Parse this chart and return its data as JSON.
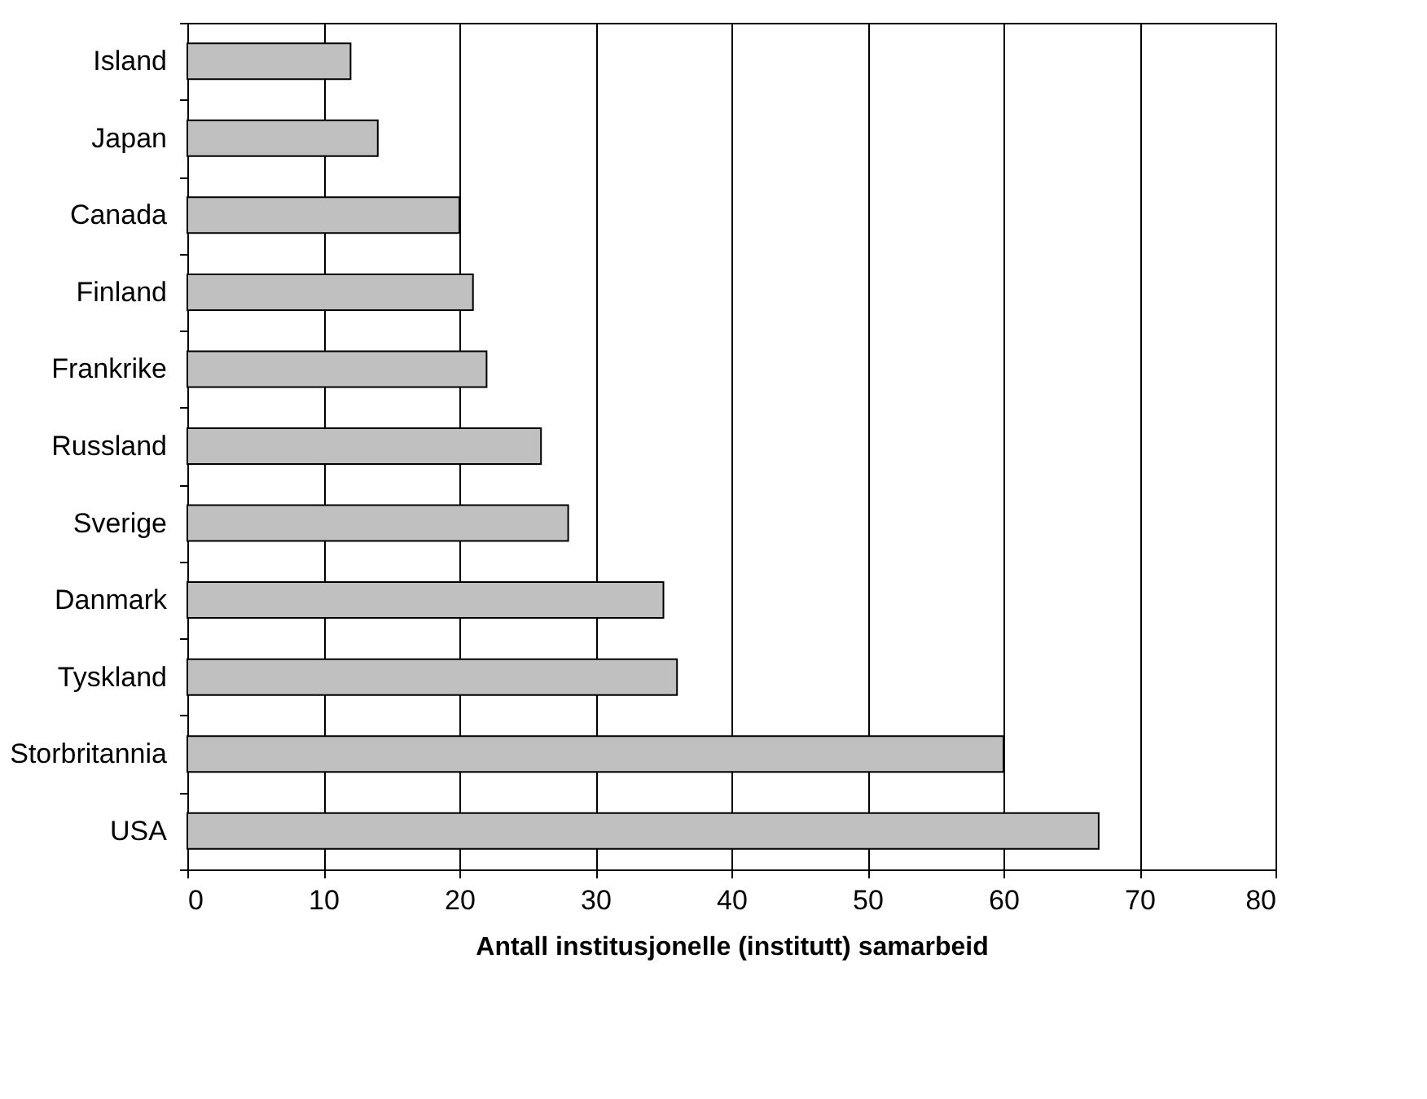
{
  "chart_data": {
    "type": "bar",
    "orientation": "horizontal",
    "xlabel": "Antall institusjonelle (institutt) samarbeid",
    "categories": [
      "Island",
      "Japan",
      "Canada",
      "Finland",
      "Frankrike",
      "Russland",
      "Sverige",
      "Danmark",
      "Tyskland",
      "Storbritannia",
      "USA"
    ],
    "values": [
      12,
      14,
      20,
      21,
      22,
      26,
      28,
      35,
      36,
      60,
      67
    ],
    "color": "#c0c0c0",
    "xlim": [
      0,
      80
    ],
    "xticks": [
      0,
      10,
      20,
      30,
      40,
      50,
      60,
      70,
      80
    ],
    "grid": "x"
  }
}
